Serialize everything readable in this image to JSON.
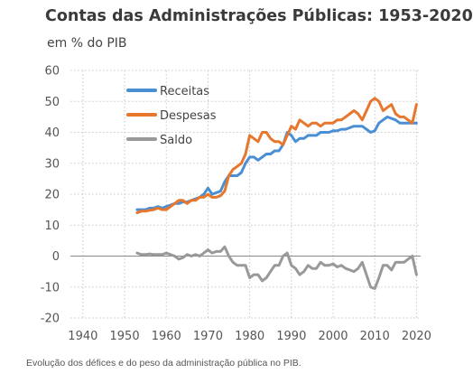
{
  "caption": "Evolução dos défices e do peso da administração pública no PIB.",
  "chart_data": {
    "type": "line",
    "title": "Contas das Administrações Públicas: 1953-2020",
    "subtitle": "em % do PIB",
    "xlabel": "",
    "ylabel": "",
    "xlim": [
      1937,
      2021
    ],
    "ylim": [
      -20,
      60
    ],
    "xticks": [
      "1940",
      "1950",
      "1960",
      "1970",
      "1980",
      "1990",
      "2000",
      "2010",
      "2020"
    ],
    "yticks": [
      "60",
      "50",
      "40",
      "30",
      "20",
      "10",
      "0",
      "-10",
      "-20"
    ],
    "grid": "dotted",
    "legend_position": "top-left",
    "x": [
      1953,
      1954,
      1955,
      1956,
      1957,
      1958,
      1959,
      1960,
      1961,
      1962,
      1963,
      1964,
      1965,
      1966,
      1967,
      1968,
      1969,
      1970,
      1971,
      1972,
      1973,
      1974,
      1975,
      1976,
      1977,
      1978,
      1979,
      1980,
      1981,
      1982,
      1983,
      1984,
      1985,
      1986,
      1987,
      1988,
      1989,
      1990,
      1991,
      1992,
      1993,
      1994,
      1995,
      1996,
      1997,
      1998,
      1999,
      2000,
      2001,
      2002,
      2003,
      2004,
      2005,
      2006,
      2007,
      2008,
      2009,
      2010,
      2011,
      2012,
      2013,
      2014,
      2015,
      2016,
      2017,
      2018,
      2019,
      2020
    ],
    "series": [
      {
        "name": "Receitas",
        "color": "#4a8fd4",
        "values": [
          15,
          15,
          15,
          15.5,
          15.5,
          16,
          15.5,
          16,
          16.5,
          17,
          17,
          17.5,
          17.5,
          18,
          18.5,
          19,
          20,
          22,
          20,
          20.5,
          21,
          24,
          26,
          26,
          26,
          27,
          30,
          32,
          32,
          31,
          32,
          33,
          33,
          34,
          34,
          36,
          40,
          39,
          37,
          38,
          38,
          39,
          39,
          39,
          40,
          40,
          40,
          40.5,
          40.5,
          41,
          41,
          41.5,
          42,
          42,
          42,
          41,
          40,
          40.5,
          43,
          44,
          45,
          44.5,
          44,
          43,
          43,
          43,
          43,
          43
        ]
      },
      {
        "name": "Despesas",
        "color": "#e8772e",
        "values": [
          14,
          14.5,
          14.5,
          14.8,
          15,
          15.5,
          15,
          15,
          16,
          17,
          18,
          18,
          17,
          18,
          18,
          19,
          19,
          20,
          19,
          19,
          19.5,
          21,
          26,
          28,
          29,
          30,
          33,
          39,
          38,
          37,
          40,
          40,
          38,
          37,
          37,
          36,
          39,
          42,
          41,
          44,
          43,
          42,
          43,
          43,
          42,
          43,
          43,
          43,
          44,
          44,
          45,
          46,
          47,
          46,
          44,
          47,
          50,
          51,
          50,
          47,
          48,
          49,
          46,
          45,
          45,
          44,
          43,
          49
        ]
      },
      {
        "name": "Saldo",
        "color": "#999999",
        "values": [
          1,
          0.5,
          0.5,
          0.7,
          0.5,
          0.5,
          0.5,
          1,
          0.5,
          0,
          -1,
          -0.5,
          0.5,
          0,
          0.5,
          0,
          1,
          2,
          1,
          1.5,
          1.5,
          3,
          0,
          -2,
          -3,
          -3,
          -3,
          -7,
          -6,
          -6,
          -8,
          -7,
          -5,
          -3,
          -3,
          0,
          1,
          -3,
          -4,
          -6,
          -5,
          -3,
          -4,
          -4,
          -2,
          -3,
          -3,
          -2.5,
          -3.5,
          -3,
          -4,
          -4.5,
          -5,
          -4,
          -2,
          -6,
          -10,
          -10.5,
          -7,
          -3,
          -3,
          -4.5,
          -2,
          -2,
          -2,
          -1,
          0,
          -6
        ]
      }
    ]
  }
}
